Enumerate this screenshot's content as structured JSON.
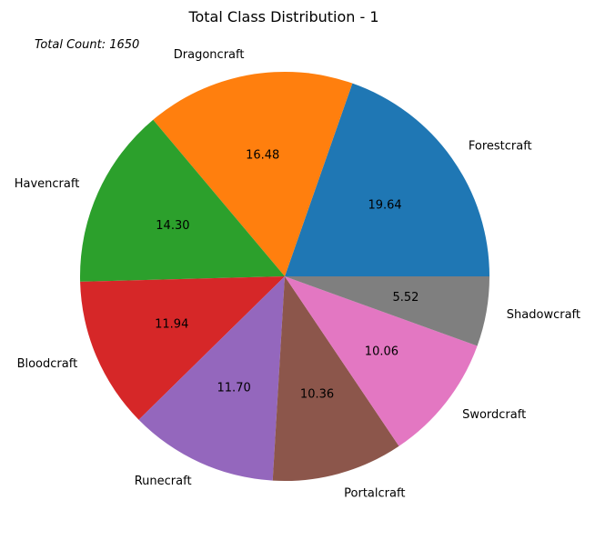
{
  "chart_data": {
    "type": "pie",
    "title": "Total Class Distribution - 1",
    "annotation": "Total Count: 1650",
    "categories": [
      "Forestcraft",
      "Dragoncraft",
      "Havencraft",
      "Bloodcraft",
      "Runecraft",
      "Portalcraft",
      "Swordcraft",
      "Shadowcraft"
    ],
    "values": [
      19.64,
      16.48,
      14.3,
      11.94,
      11.7,
      10.36,
      10.06,
      5.52
    ],
    "value_labels": [
      "19.64",
      "16.48",
      "14.30",
      "11.94",
      "11.70",
      "10.36",
      "10.06",
      "5.52"
    ],
    "colors": [
      "#1f77b4",
      "#ff7f0e",
      "#2ca02c",
      "#d62728",
      "#9467bd",
      "#8c564b",
      "#e377c2",
      "#7f7f7f"
    ],
    "start_angle_deg": 0,
    "direction": "counterclockwise",
    "legend": "none"
  }
}
